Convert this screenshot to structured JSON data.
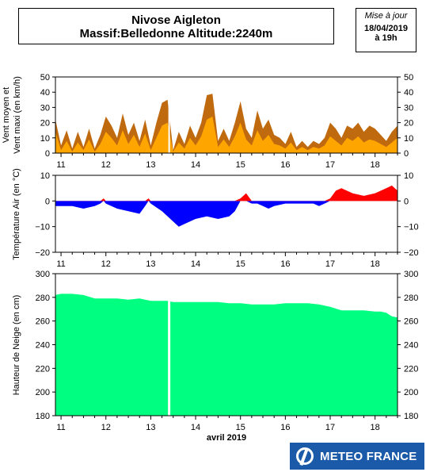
{
  "header": {
    "title_line1": "Nivose Aigleton",
    "title_line2": "Massif:Belledonne Altitude:2240m"
  },
  "update": {
    "label": "Mise à jour",
    "date": "18/04/2019",
    "time": "à 19h"
  },
  "logo": {
    "text": "METEO FRANCE",
    "color": "#1a5aa8"
  },
  "colors": {
    "wind_mean": "#ffa500",
    "wind_max": "#c06a10",
    "temp_pos": "#ff0000",
    "temp_neg": "#0000ff",
    "snow": "#00ff80"
  },
  "chart_data": [
    {
      "type": "area",
      "ylabel_line1": "Vent moyen et",
      "ylabel_line2": "Vent maxi (en km/h)",
      "ylim": [
        0,
        50
      ],
      "yticks": [
        0,
        10,
        20,
        30,
        40,
        50
      ],
      "x_ticklabels": [
        "11",
        "12",
        "13",
        "14",
        "15",
        "16",
        "17",
        "18"
      ],
      "x": [
        10.875,
        11.0,
        11.125,
        11.25,
        11.375,
        11.5,
        11.625,
        11.75,
        11.875,
        12.0,
        12.125,
        12.25,
        12.375,
        12.5,
        12.625,
        12.75,
        12.875,
        13.0,
        13.125,
        13.25,
        13.375,
        13.5,
        13.625,
        13.75,
        13.875,
        14.0,
        14.125,
        14.25,
        14.375,
        14.5,
        14.625,
        14.75,
        14.875,
        15.0,
        15.125,
        15.25,
        15.375,
        15.5,
        15.625,
        15.75,
        15.875,
        16.0,
        16.125,
        16.25,
        16.375,
        16.5,
        16.625,
        16.75,
        16.875,
        17.0,
        17.125,
        17.25,
        17.375,
        17.5,
        17.625,
        17.75,
        17.875,
        18.0,
        18.125,
        18.25,
        18.375,
        18.5
      ],
      "series": [
        {
          "name": "Vent maxi",
          "values": [
            22,
            5,
            15,
            3,
            14,
            4,
            16,
            3,
            12,
            24,
            18,
            10,
            26,
            12,
            20,
            8,
            22,
            5,
            20,
            33,
            35,
            2,
            14,
            6,
            18,
            10,
            20,
            38,
            39,
            8,
            16,
            8,
            20,
            34,
            16,
            10,
            28,
            16,
            22,
            12,
            10,
            6,
            14,
            4,
            8,
            4,
            8,
            6,
            10,
            20,
            16,
            10,
            18,
            16,
            20,
            14,
            18,
            16,
            12,
            8,
            14,
            18
          ]
        },
        {
          "name": "Vent moyen",
          "values": [
            14,
            2,
            8,
            1,
            7,
            2,
            9,
            1,
            6,
            14,
            10,
            5,
            15,
            6,
            12,
            4,
            13,
            2,
            10,
            18,
            20,
            1,
            7,
            3,
            10,
            5,
            11,
            22,
            24,
            4,
            9,
            4,
            11,
            20,
            9,
            5,
            15,
            8,
            12,
            6,
            5,
            3,
            7,
            2,
            4,
            2,
            4,
            3,
            5,
            11,
            8,
            5,
            10,
            8,
            11,
            7,
            9,
            8,
            6,
            4,
            7,
            10
          ]
        }
      ]
    },
    {
      "type": "area",
      "ylabel": "Température Air (en °C)",
      "ylim": [
        -20,
        10
      ],
      "yticks": [
        -20,
        -10,
        0,
        10
      ],
      "x_ticklabels": [
        "11",
        "12",
        "13",
        "14",
        "15",
        "16",
        "17",
        "18"
      ],
      "x": [
        10.875,
        11.0,
        11.25,
        11.5,
        11.75,
        11.875,
        11.95,
        12.0,
        12.25,
        12.5,
        12.75,
        12.875,
        12.95,
        13.0,
        13.25,
        13.5,
        13.625,
        13.75,
        14.0,
        14.25,
        14.5,
        14.75,
        14.875,
        15.0,
        15.125,
        15.25,
        15.375,
        15.5,
        15.625,
        15.75,
        16.0,
        16.25,
        16.5,
        16.625,
        16.75,
        16.875,
        17.0,
        17.125,
        17.25,
        17.5,
        17.75,
        18.0,
        18.25,
        18.375,
        18.5
      ],
      "series": [
        {
          "name": "Température",
          "values": [
            -2,
            -2,
            -2,
            -3,
            -2,
            -1,
            1,
            -1,
            -3,
            -4,
            -5,
            -2,
            1,
            -1,
            -4,
            -8,
            -10,
            -9,
            -7,
            -6,
            -7,
            -6,
            -4,
            1,
            3,
            -1,
            -1,
            -2,
            -3,
            -2,
            -1,
            -1,
            -1,
            -1,
            -2,
            -1,
            1,
            4,
            5,
            3,
            2,
            3,
            5,
            6,
            4
          ]
        }
      ]
    },
    {
      "type": "area",
      "ylabel": "Hauteur de Neige (en cm)",
      "xlabel": "avril 2019",
      "ylim": [
        180,
        300
      ],
      "yticks": [
        180,
        200,
        220,
        240,
        260,
        280,
        300
      ],
      "x_ticklabels": [
        "11",
        "12",
        "13",
        "14",
        "15",
        "16",
        "17",
        "18"
      ],
      "x": [
        10.875,
        11.0,
        11.25,
        11.5,
        11.75,
        12.0,
        12.25,
        12.5,
        12.75,
        13.0,
        13.25,
        13.375,
        13.5,
        13.75,
        14.0,
        14.25,
        14.5,
        14.75,
        15.0,
        15.25,
        15.5,
        15.75,
        16.0,
        16.25,
        16.5,
        16.75,
        17.0,
        17.25,
        17.5,
        17.75,
        18.0,
        18.125,
        18.25,
        18.375,
        18.5
      ],
      "series": [
        {
          "name": "Hauteur de Neige",
          "values": [
            282,
            283,
            283,
            282,
            279,
            279,
            279,
            278,
            279,
            277,
            277,
            277,
            276,
            276,
            276,
            276,
            276,
            275,
            275,
            274,
            274,
            274,
            275,
            275,
            275,
            274,
            272,
            269,
            269,
            269,
            268,
            268,
            267,
            264,
            263
          ]
        }
      ]
    }
  ]
}
